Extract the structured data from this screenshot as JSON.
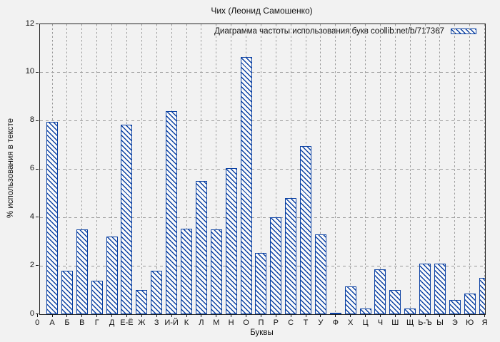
{
  "chart_data": {
    "type": "bar",
    "title": "Чих (Леонид Самошенко)",
    "xlabel": "Буквы",
    "ylabel": "% использования в тексте",
    "series_name": "Диаграмма частоты использования букв coollib.net/b/717367",
    "categories": [
      "0",
      "А",
      "Б",
      "В",
      "Г",
      "Д",
      "Е-Ё",
      "Ж",
      "З",
      "И-Й",
      "К",
      "Л",
      "М",
      "Н",
      "О",
      "П",
      "Р",
      "С",
      "Т",
      "У",
      "Ф",
      "Х",
      "Ц",
      "Ч",
      "Ш",
      "Щ",
      "Ь-Ъ",
      "Ы",
      "Э",
      "Ю",
      "Я"
    ],
    "values": [
      0,
      7.95,
      1.8,
      3.5,
      1.4,
      3.2,
      7.85,
      1.0,
      1.8,
      8.4,
      3.55,
      5.5,
      3.5,
      6.05,
      10.65,
      2.55,
      4.0,
      4.8,
      6.95,
      3.3,
      0.07,
      1.15,
      0.25,
      1.85,
      1.0,
      0.25,
      2.1,
      2.1,
      0.6,
      0.85,
      1.5
    ],
    "ylim": [
      0,
      12
    ],
    "y_ticks": [
      0,
      2,
      4,
      6,
      8,
      10,
      12
    ],
    "grid": true,
    "legend_position": "top-right",
    "bar_style": "diagonal-hatch"
  },
  "colors": {
    "bar_border": "#0b41a3",
    "bar_fill": "#fbfbfb",
    "background": "#f2f2f2",
    "grid": "#9a9a9a",
    "text": "#111111"
  }
}
